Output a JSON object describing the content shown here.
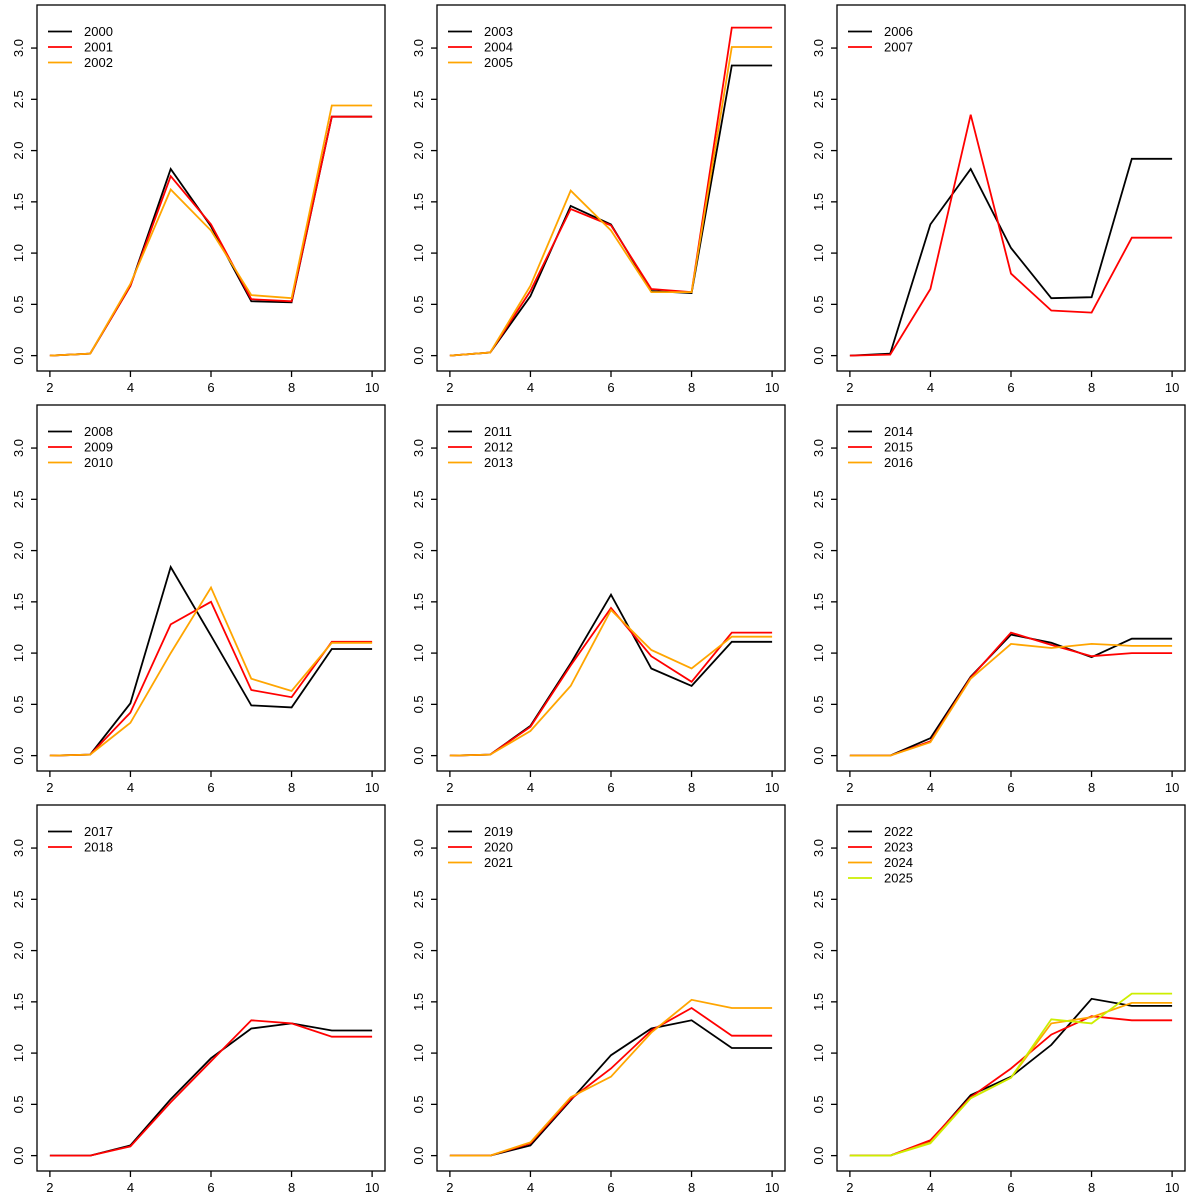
{
  "page": {
    "background": "#ffffff",
    "grid_rows": 3,
    "grid_cols": 3
  },
  "palette": {
    "black": "#000000",
    "red": "#FF0000",
    "orange": "#FFA500",
    "yellowgreen": "#CCEE00",
    "axis": "#000000"
  },
  "chart_data": [
    {
      "type": "line",
      "x": [
        2,
        3,
        4,
        5,
        6,
        7,
        8,
        9,
        10
      ],
      "xticks": [
        "2",
        "4",
        "6",
        "8",
        "10"
      ],
      "yticks": [
        0.0,
        0.5,
        1.0,
        1.5,
        2.0,
        2.5,
        3.0
      ],
      "xlim": [
        1.68,
        10.32
      ],
      "ylim": [
        -0.15,
        3.42
      ],
      "legend_position": "topleft",
      "grid": false,
      "series": [
        {
          "name": "2000",
          "color": "#000000",
          "values": [
            0.0,
            0.02,
            0.68,
            1.82,
            1.26,
            0.53,
            0.52,
            2.33,
            2.33
          ]
        },
        {
          "name": "2001",
          "color": "#FF0000",
          "values": [
            0.0,
            0.02,
            0.68,
            1.75,
            1.28,
            0.55,
            0.53,
            2.33,
            2.33
          ]
        },
        {
          "name": "2002",
          "color": "#FFA500",
          "values": [
            0.0,
            0.02,
            0.7,
            1.62,
            1.22,
            0.59,
            0.56,
            2.44,
            2.44
          ]
        }
      ]
    },
    {
      "type": "line",
      "x": [
        2,
        3,
        4,
        5,
        6,
        7,
        8,
        9,
        10
      ],
      "xticks": [
        "2",
        "4",
        "6",
        "8",
        "10"
      ],
      "yticks": [
        0.0,
        0.5,
        1.0,
        1.5,
        2.0,
        2.5,
        3.0
      ],
      "xlim": [
        1.68,
        10.32
      ],
      "ylim": [
        -0.15,
        3.42
      ],
      "legend_position": "topleft",
      "grid": false,
      "series": [
        {
          "name": "2003",
          "color": "#000000",
          "values": [
            0.0,
            0.03,
            0.58,
            1.46,
            1.28,
            0.63,
            0.61,
            2.83,
            2.83
          ]
        },
        {
          "name": "2004",
          "color": "#FF0000",
          "values": [
            0.0,
            0.03,
            0.63,
            1.43,
            1.27,
            0.65,
            0.62,
            3.2,
            3.2
          ]
        },
        {
          "name": "2005",
          "color": "#FFA500",
          "values": [
            0.0,
            0.03,
            0.68,
            1.61,
            1.22,
            0.62,
            0.62,
            3.01,
            3.01
          ]
        }
      ]
    },
    {
      "type": "line",
      "x": [
        2,
        3,
        4,
        5,
        6,
        7,
        8,
        9,
        10
      ],
      "xticks": [
        "2",
        "4",
        "6",
        "8",
        "10"
      ],
      "yticks": [
        0.0,
        0.5,
        1.0,
        1.5,
        2.0,
        2.5,
        3.0
      ],
      "xlim": [
        1.68,
        10.32
      ],
      "ylim": [
        -0.15,
        3.42
      ],
      "legend_position": "topleft",
      "grid": false,
      "series": [
        {
          "name": "2006",
          "color": "#000000",
          "values": [
            0.0,
            0.02,
            1.28,
            1.82,
            1.05,
            0.56,
            0.57,
            1.92,
            1.92
          ]
        },
        {
          "name": "2007",
          "color": "#FF0000",
          "values": [
            0.0,
            0.01,
            0.65,
            2.35,
            0.8,
            0.44,
            0.42,
            1.15,
            1.15
          ]
        }
      ]
    },
    {
      "type": "line",
      "x": [
        2,
        3,
        4,
        5,
        6,
        7,
        8,
        9,
        10
      ],
      "xticks": [
        "2",
        "4",
        "6",
        "8",
        "10"
      ],
      "yticks": [
        0.0,
        0.5,
        1.0,
        1.5,
        2.0,
        2.5,
        3.0
      ],
      "xlim": [
        1.68,
        10.32
      ],
      "ylim": [
        -0.15,
        3.42
      ],
      "legend_position": "topleft",
      "grid": false,
      "series": [
        {
          "name": "2008",
          "color": "#000000",
          "values": [
            0.0,
            0.01,
            0.51,
            1.84,
            1.17,
            0.49,
            0.47,
            1.04,
            1.04
          ]
        },
        {
          "name": "2009",
          "color": "#FF0000",
          "values": [
            0.0,
            0.01,
            0.42,
            1.28,
            1.5,
            0.64,
            0.57,
            1.11,
            1.11
          ]
        },
        {
          "name": "2010",
          "color": "#FFA500",
          "values": [
            0.0,
            0.01,
            0.32,
            1.0,
            1.64,
            0.75,
            0.63,
            1.1,
            1.1
          ]
        }
      ]
    },
    {
      "type": "line",
      "x": [
        2,
        3,
        4,
        5,
        6,
        7,
        8,
        9,
        10
      ],
      "xticks": [
        "2",
        "4",
        "6",
        "8",
        "10"
      ],
      "yticks": [
        0.0,
        0.5,
        1.0,
        1.5,
        2.0,
        2.5,
        3.0
      ],
      "xlim": [
        1.68,
        10.32
      ],
      "ylim": [
        -0.15,
        3.42
      ],
      "legend_position": "topleft",
      "grid": false,
      "series": [
        {
          "name": "2011",
          "color": "#000000",
          "values": [
            0.0,
            0.01,
            0.29,
            0.9,
            1.57,
            0.85,
            0.68,
            1.11,
            1.11
          ]
        },
        {
          "name": "2012",
          "color": "#FF0000",
          "values": [
            0.0,
            0.01,
            0.28,
            0.88,
            1.44,
            0.97,
            0.72,
            1.2,
            1.2
          ]
        },
        {
          "name": "2013",
          "color": "#FFA500",
          "values": [
            0.0,
            0.01,
            0.24,
            0.68,
            1.42,
            1.03,
            0.85,
            1.16,
            1.16
          ]
        }
      ]
    },
    {
      "type": "line",
      "x": [
        2,
        3,
        4,
        5,
        6,
        7,
        8,
        9,
        10
      ],
      "xticks": [
        "2",
        "4",
        "6",
        "8",
        "10"
      ],
      "yticks": [
        0.0,
        0.5,
        1.0,
        1.5,
        2.0,
        2.5,
        3.0
      ],
      "xlim": [
        1.68,
        10.32
      ],
      "ylim": [
        -0.15,
        3.42
      ],
      "legend_position": "topleft",
      "grid": false,
      "series": [
        {
          "name": "2014",
          "color": "#000000",
          "values": [
            0.0,
            0.0,
            0.17,
            0.77,
            1.18,
            1.1,
            0.96,
            1.14,
            1.14
          ]
        },
        {
          "name": "2015",
          "color": "#FF0000",
          "values": [
            0.0,
            0.0,
            0.14,
            0.76,
            1.2,
            1.08,
            0.97,
            1.0,
            1.0
          ]
        },
        {
          "name": "2016",
          "color": "#FFA500",
          "values": [
            0.0,
            0.0,
            0.13,
            0.75,
            1.09,
            1.05,
            1.09,
            1.07,
            1.07
          ]
        }
      ]
    },
    {
      "type": "line",
      "x": [
        2,
        3,
        4,
        5,
        6,
        7,
        8,
        9,
        10
      ],
      "xticks": [
        "2",
        "4",
        "6",
        "8",
        "10"
      ],
      "yticks": [
        0.0,
        0.5,
        1.0,
        1.5,
        2.0,
        2.5,
        3.0
      ],
      "xlim": [
        1.68,
        10.32
      ],
      "ylim": [
        -0.15,
        3.42
      ],
      "legend_position": "topleft",
      "grid": false,
      "series": [
        {
          "name": "2017",
          "color": "#000000",
          "values": [
            0.0,
            0.0,
            0.1,
            0.55,
            0.95,
            1.24,
            1.29,
            1.22,
            1.22
          ]
        },
        {
          "name": "2018",
          "color": "#FF0000",
          "values": [
            0.0,
            0.0,
            0.09,
            0.52,
            0.92,
            1.32,
            1.29,
            1.16,
            1.16
          ]
        }
      ]
    },
    {
      "type": "line",
      "x": [
        2,
        3,
        4,
        5,
        6,
        7,
        8,
        9,
        10
      ],
      "xticks": [
        "2",
        "4",
        "6",
        "8",
        "10"
      ],
      "yticks": [
        0.0,
        0.5,
        1.0,
        1.5,
        2.0,
        2.5,
        3.0
      ],
      "xlim": [
        1.68,
        10.32
      ],
      "ylim": [
        -0.15,
        3.42
      ],
      "legend_position": "topleft",
      "grid": false,
      "series": [
        {
          "name": "2019",
          "color": "#000000",
          "values": [
            0.0,
            0.0,
            0.1,
            0.54,
            0.98,
            1.24,
            1.32,
            1.05,
            1.05
          ]
        },
        {
          "name": "2020",
          "color": "#FF0000",
          "values": [
            0.0,
            0.0,
            0.12,
            0.55,
            0.85,
            1.22,
            1.44,
            1.17,
            1.17
          ]
        },
        {
          "name": "2021",
          "color": "#FFA500",
          "values": [
            0.0,
            0.0,
            0.13,
            0.57,
            0.77,
            1.2,
            1.52,
            1.44,
            1.44
          ]
        }
      ]
    },
    {
      "type": "line",
      "x": [
        2,
        3,
        4,
        5,
        6,
        7,
        8,
        9,
        10
      ],
      "xticks": [
        "2",
        "4",
        "6",
        "8",
        "10"
      ],
      "yticks": [
        0.0,
        0.5,
        1.0,
        1.5,
        2.0,
        2.5,
        3.0
      ],
      "xlim": [
        1.68,
        10.32
      ],
      "ylim": [
        -0.15,
        3.42
      ],
      "legend_position": "topleft",
      "grid": false,
      "series": [
        {
          "name": "2022",
          "color": "#000000",
          "values": [
            0.0,
            0.0,
            0.14,
            0.59,
            0.77,
            1.08,
            1.53,
            1.46,
            1.46
          ]
        },
        {
          "name": "2023",
          "color": "#FF0000",
          "values": [
            0.0,
            0.0,
            0.15,
            0.57,
            0.85,
            1.18,
            1.36,
            1.32,
            1.32
          ]
        },
        {
          "name": "2024",
          "color": "#FFA500",
          "values": [
            0.0,
            0.0,
            0.13,
            0.56,
            0.76,
            1.29,
            1.35,
            1.49,
            1.49
          ]
        },
        {
          "name": "2025",
          "color": "#CCEE00",
          "values": [
            0.0,
            0.0,
            0.12,
            0.56,
            0.76,
            1.33,
            1.29,
            1.58,
            1.58
          ]
        }
      ]
    }
  ]
}
